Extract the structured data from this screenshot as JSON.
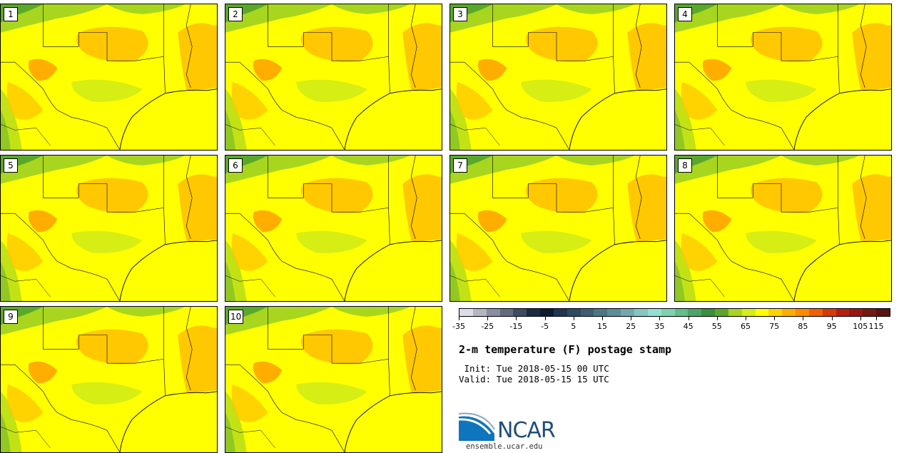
{
  "panels": [
    {
      "label": "1"
    },
    {
      "label": "2"
    },
    {
      "label": "3"
    },
    {
      "label": "4"
    },
    {
      "label": "5"
    },
    {
      "label": "6"
    },
    {
      "label": "7"
    },
    {
      "label": "8"
    },
    {
      "label": "9"
    },
    {
      "label": "10"
    }
  ],
  "colorbar": {
    "colors": [
      "#dcdde6",
      "#b4b6c4",
      "#8a8ea2",
      "#636a80",
      "#3d4a60",
      "#1a2a44",
      "#0e1a30",
      "#1f3550",
      "#2e4a62",
      "#3c5f74",
      "#4d7686",
      "#5e8d98",
      "#73a9ae",
      "#86c5c2",
      "#93e0d2",
      "#7fd2b0",
      "#63bf8a",
      "#4aa66a",
      "#3a8f3a",
      "#5aa82a",
      "#a8d61e",
      "#d6ee14",
      "#ffff00",
      "#ffd400",
      "#ffae00",
      "#ff8a00",
      "#f06000",
      "#d83a08",
      "#b81e10",
      "#981810",
      "#781810",
      "#5a1410"
    ],
    "tick_labels": [
      "-35",
      "-25",
      "-15",
      "-5",
      "5",
      "15",
      "25",
      "35",
      "45",
      "55",
      "65",
      "75",
      "85",
      "95",
      "105",
      "115"
    ]
  },
  "title": "2-m temperature (F) postage stamp",
  "init_line": " Init: Tue 2018-05-15 00 UTC",
  "valid_line": "Valid: Tue 2018-05-15 15 UTC",
  "logo_text": "NCAR",
  "url": "ensemble.ucar.edu",
  "map_colors": {
    "gulf": "#ffff00",
    "land": "#ffff00",
    "warm": "#ffc800",
    "hot": "#ffae00",
    "cool": "#d6ee14",
    "green": "#a8d61e",
    "dark_green": "#5aa82a",
    "border": "#000000"
  }
}
